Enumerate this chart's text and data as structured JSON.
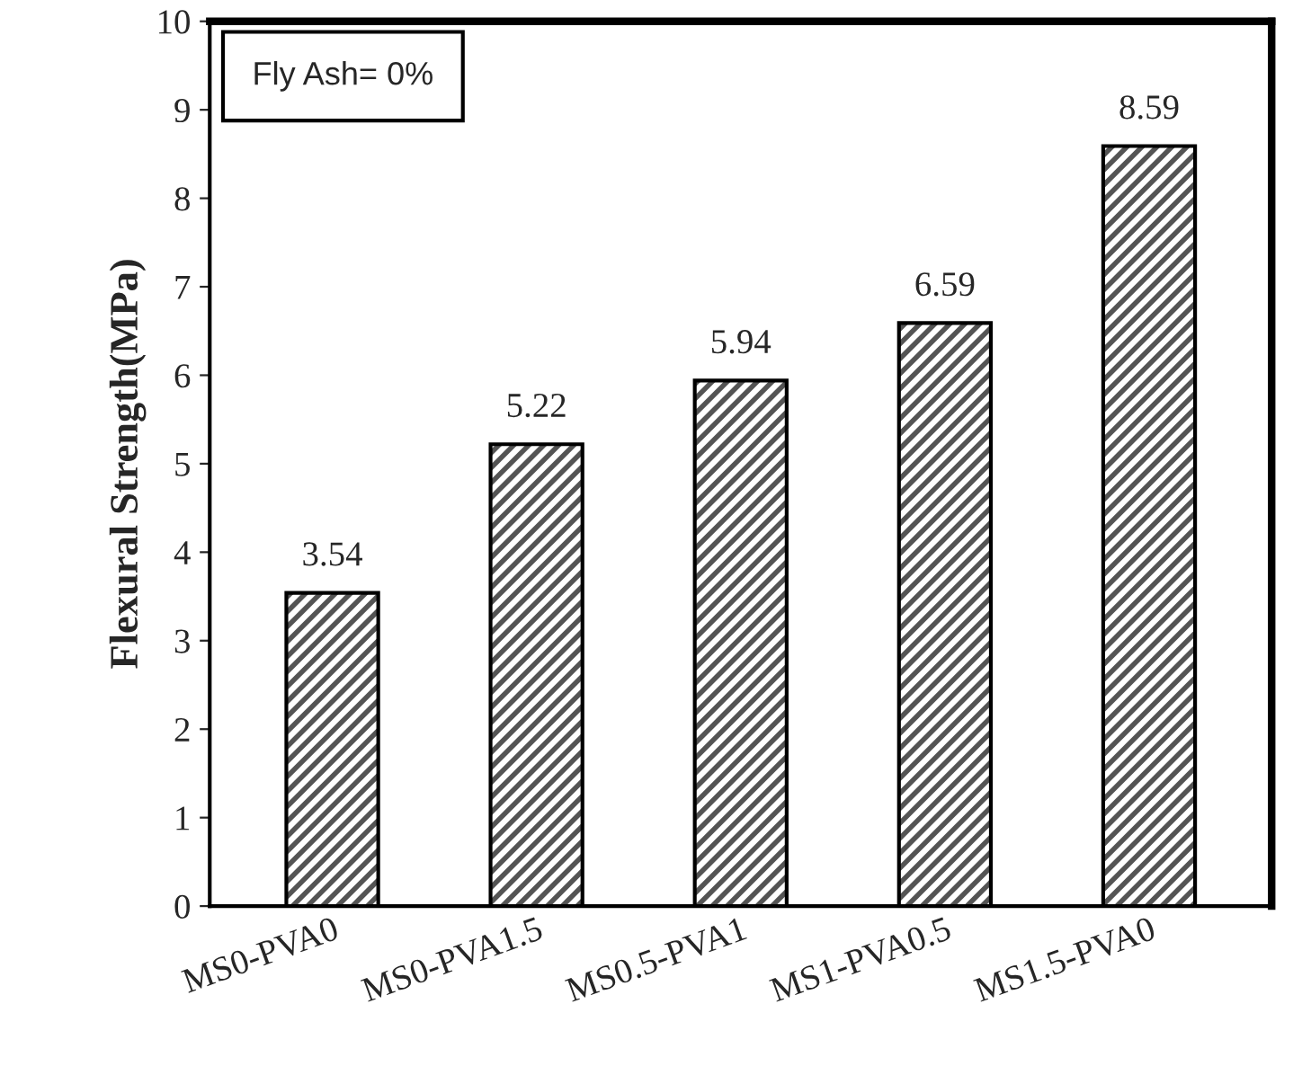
{
  "chart_data": {
    "type": "bar",
    "ylabel": "Flexural Strength(MPa)",
    "categories": [
      "MS0-PVA0",
      "MS0-PVA1.5",
      "MS0.5-PVA1",
      "MS1-PVA0.5",
      "MS1.5-PVA0"
    ],
    "values": [
      3.54,
      5.22,
      5.94,
      6.59,
      8.59
    ],
    "color": "#000000",
    "ylim": [
      0,
      10
    ],
    "yticks": [
      0,
      1,
      2,
      3,
      4,
      5,
      6,
      7,
      8,
      9,
      10
    ],
    "data_labels": true,
    "grid": false,
    "annotations": [
      "Fly Ash= 0%"
    ]
  }
}
